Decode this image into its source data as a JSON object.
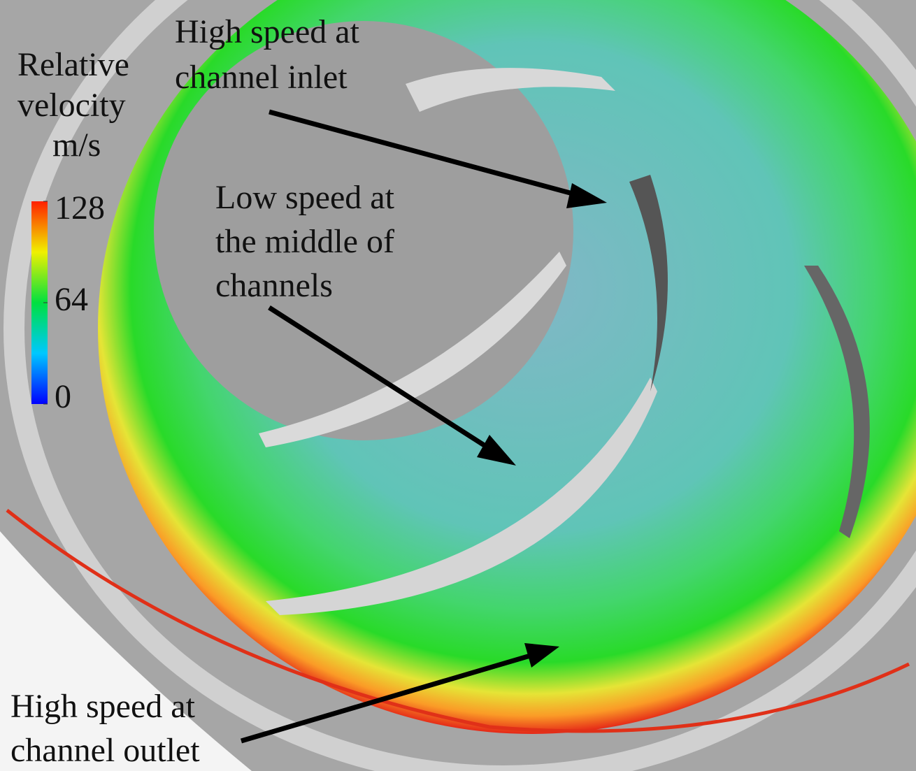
{
  "legend": {
    "title_lines": [
      "Relative",
      "velocity",
      "m/s"
    ],
    "lim": [
      0,
      128
    ],
    "ticks": [
      128,
      64,
      0
    ]
  },
  "annotations": [
    {
      "lines": [
        "High speed at",
        "channel inlet"
      ]
    },
    {
      "lines": [
        "Low speed at",
        "the middle of",
        "channels"
      ]
    },
    {
      "lines": [
        "High speed at",
        "channel outlet"
      ]
    }
  ]
}
